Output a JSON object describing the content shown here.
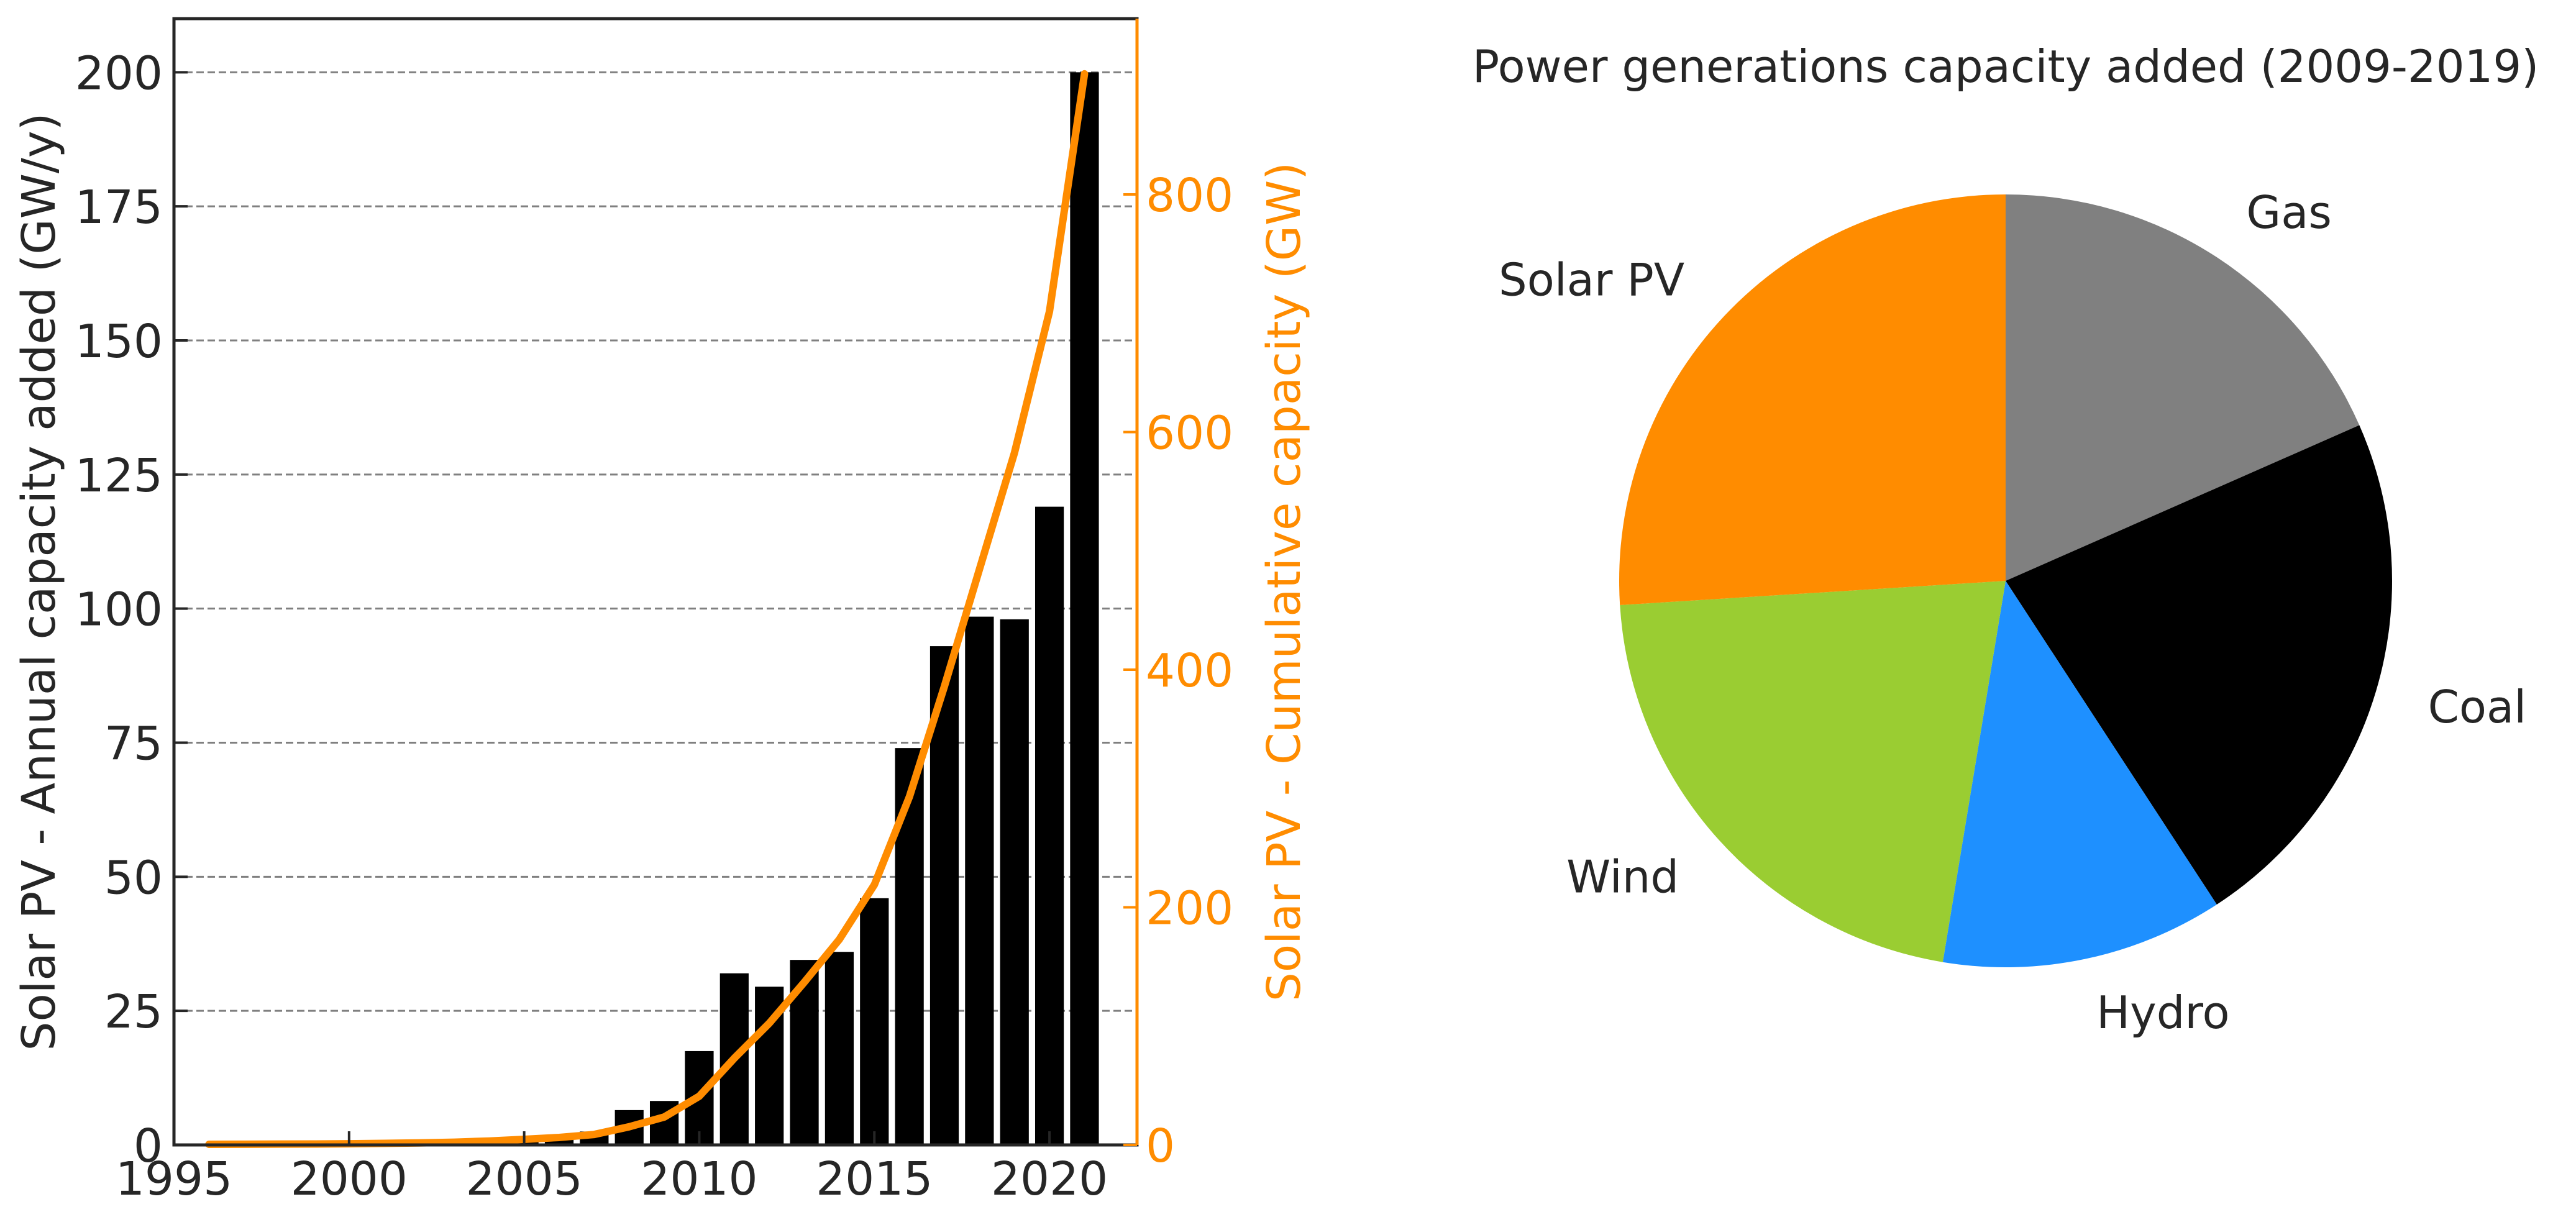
{
  "colors": {
    "bars": "#000000",
    "cumulative_line": "#ff8c00",
    "right_axis": "#ff8c00",
    "grid": "#808080",
    "text": "#262626"
  },
  "chart_data": [
    {
      "type": "bar",
      "secondary_type": "line",
      "xlabel": "",
      "ylabel": "Solar PV - Annual capacity added (GW/y)",
      "y2label": "Solar PV - Cumulative capacity (GW)",
      "xlim": [
        1995,
        2022.5
      ],
      "ylim": [
        0,
        210
      ],
      "y2lim": [
        0,
        948
      ],
      "x_ticks": [
        1995,
        2000,
        2005,
        2010,
        2015,
        2020
      ],
      "y_ticks": [
        0,
        25,
        50,
        75,
        100,
        125,
        150,
        175,
        200
      ],
      "y2_ticks": [
        0,
        200,
        400,
        600,
        800
      ],
      "grid": "horizontal dashed",
      "x": [
        1996,
        1997,
        1998,
        1999,
        2000,
        2001,
        2002,
        2003,
        2004,
        2005,
        2006,
        2007,
        2008,
        2009,
        2010,
        2011,
        2012,
        2013,
        2014,
        2015,
        2016,
        2017,
        2018,
        2019,
        2020,
        2021
      ],
      "annual_added": [
        0.1,
        0.1,
        0.1,
        0.1,
        0.2,
        0.3,
        0.4,
        0.6,
        1.0,
        1.4,
        1.6,
        2.5,
        6.5,
        8.2,
        17.5,
        32.0,
        29.5,
        34.5,
        36.0,
        46.0,
        74.0,
        93.0,
        98.5,
        98.0,
        119.0,
        200.0
      ],
      "cumulative": [
        0.5,
        0.6,
        0.7,
        0.8,
        1.0,
        1.3,
        1.7,
        2.3,
        3.3,
        4.7,
        6.3,
        8.8,
        15.3,
        23.5,
        41.0,
        73.0,
        102.5,
        137.0,
        173.0,
        219.0,
        293.0,
        386.0,
        484.5,
        582.5,
        701.5,
        901.5
      ]
    },
    {
      "type": "pie",
      "title": "Power generations capacity added (2009-2019)",
      "labels": [
        "Gas",
        "Coal",
        "Hydro",
        "Wind",
        "Solar PV"
      ],
      "values": [
        18.4,
        22.4,
        11.8,
        21.4,
        26.0
      ],
      "colors": [
        "#808080",
        "#000000",
        "#1e90ff",
        "#9acd32",
        "#ff8c00"
      ]
    }
  ]
}
